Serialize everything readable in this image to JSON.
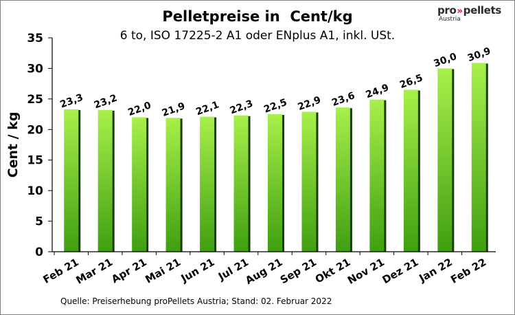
{
  "chart_data": {
    "type": "bar",
    "title": "Pelletpreise in  Cent/kg",
    "subtitle": "6 to, ISO 17225-2 A1 oder ENplus A1, inkl. USt.",
    "ylabel": "Cent / kg",
    "xlabel": "",
    "ylim": [
      0,
      35
    ],
    "yticks": [
      0,
      5,
      10,
      15,
      20,
      25,
      30,
      35
    ],
    "grid": false,
    "categories": [
      "Feb 21",
      "Mar 21",
      "Apr 21",
      "Mai 21",
      "Jun 21",
      "Jul 21",
      "Aug 21",
      "Sep 21",
      "Okt 21",
      "Nov 21",
      "Dez 21",
      "Jan 22",
      "Feb 22"
    ],
    "values": [
      23.3,
      23.2,
      22.0,
      21.9,
      22.1,
      22.3,
      22.5,
      22.9,
      23.6,
      24.9,
      26.5,
      30.0,
      30.9
    ],
    "data_labels": [
      "23,3",
      "23,2",
      "22,0",
      "21,9",
      "22,1",
      "22,3",
      "22,5",
      "22,9",
      "23,6",
      "24,9",
      "26,5",
      "30,0",
      "30,9"
    ],
    "colors": {
      "bar_top": "#a8f04a",
      "bar_bottom": "#3f9f10",
      "bar_shadow": "#1a3d08"
    }
  },
  "source": "Quelle: Preiserhebung proPellets Austria; Stand: 02. Februar 2022",
  "logo": {
    "pro": "pro",
    "chevrons": "»",
    "pellets": "pellets",
    "sub": "Austria"
  }
}
